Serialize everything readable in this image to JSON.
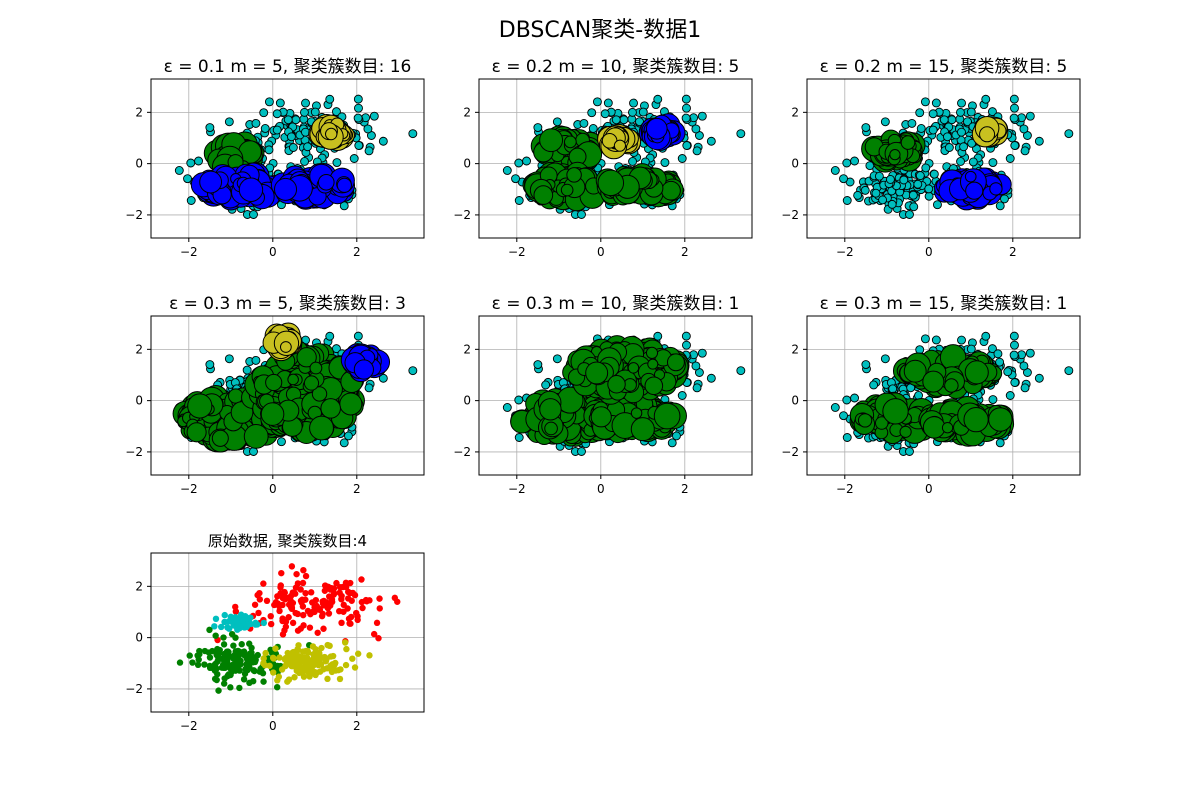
{
  "figure": {
    "suptitle": "DBSCAN聚类-数据1"
  },
  "chart_data": [
    {
      "type": "scatter",
      "title": "ε = 0.1  m = 5, 聚类簇数目: 16",
      "xlim": [
        -2.9,
        3.6
      ],
      "ylim": [
        -2.9,
        3.3
      ],
      "xticks": [
        -2,
        0,
        2
      ],
      "yticks": [
        -2,
        0,
        2
      ],
      "grid": true,
      "clusters": [
        {
          "color": "#008000",
          "regions": [
            {
              "cx": -0.9,
              "cy": 0.3,
              "rx": 0.5,
              "ry": 0.5
            }
          ]
        },
        {
          "color": "#c8c020",
          "regions": [
            {
              "cx": 1.45,
              "cy": 1.25,
              "rx": 0.35,
              "ry": 0.3
            }
          ]
        },
        {
          "color": "#0000ff",
          "regions": [
            {
              "cx": -0.8,
              "cy": -0.9,
              "rx": 0.9,
              "ry": 0.5
            },
            {
              "cx": 1.0,
              "cy": -0.9,
              "rx": 0.8,
              "ry": 0.45
            }
          ]
        }
      ],
      "noise_color": "#00bfbf"
    },
    {
      "type": "scatter",
      "title": "ε = 0.2  m = 10, 聚类簇数目: 5",
      "xlim": [
        -2.9,
        3.6
      ],
      "ylim": [
        -2.9,
        3.3
      ],
      "xticks": [
        -2,
        0,
        2
      ],
      "yticks": [
        -2,
        0,
        2
      ],
      "grid": true,
      "clusters": [
        {
          "color": "#008000",
          "regions": [
            {
              "cx": -0.8,
              "cy": 0.5,
              "rx": 0.6,
              "ry": 0.55
            },
            {
              "cx": -0.8,
              "cy": -0.9,
              "rx": 0.8,
              "ry": 0.55
            },
            {
              "cx": 0.9,
              "cy": -0.9,
              "rx": 0.85,
              "ry": 0.5
            }
          ]
        },
        {
          "color": "#c8c020",
          "regions": [
            {
              "cx": 0.4,
              "cy": 0.9,
              "rx": 0.3,
              "ry": 0.25
            }
          ]
        },
        {
          "color": "#0000ff",
          "regions": [
            {
              "cx": 1.45,
              "cy": 1.25,
              "rx": 0.3,
              "ry": 0.3
            }
          ]
        }
      ],
      "noise_color": "#00bfbf"
    },
    {
      "type": "scatter",
      "title": "ε = 0.2  m = 15, 聚类簇数目: 5",
      "xlim": [
        -2.9,
        3.6
      ],
      "ylim": [
        -2.9,
        3.3
      ],
      "xticks": [
        -2,
        0,
        2
      ],
      "yticks": [
        -2,
        0,
        2
      ],
      "grid": true,
      "clusters": [
        {
          "color": "#008000",
          "regions": [
            {
              "cx": -0.8,
              "cy": 0.5,
              "rx": 0.55,
              "ry": 0.45
            }
          ]
        },
        {
          "color": "#c8c020",
          "regions": [
            {
              "cx": 1.5,
              "cy": 1.25,
              "rx": 0.2,
              "ry": 0.18
            }
          ]
        },
        {
          "color": "#0000ff",
          "regions": [
            {
              "cx": 1.0,
              "cy": -0.9,
              "rx": 0.75,
              "ry": 0.45
            }
          ]
        }
      ],
      "noise_color": "#00bfbf"
    },
    {
      "type": "scatter",
      "title": "ε = 0.3  m = 5, 聚类簇数目: 3",
      "xlim": [
        -2.9,
        3.6
      ],
      "ylim": [
        -2.9,
        3.3
      ],
      "xticks": [
        -2,
        0,
        2
      ],
      "yticks": [
        -2,
        0,
        2
      ],
      "grid": true,
      "clusters": [
        {
          "color": "#008000",
          "regions": [
            {
              "cx": -0.9,
              "cy": -0.7,
              "rx": 1.3,
              "ry": 0.9
            },
            {
              "cx": 0.8,
              "cy": 0.3,
              "rx": 1.2,
              "ry": 1.6
            }
          ]
        },
        {
          "color": "#c8c020",
          "regions": [
            {
              "cx": 0.25,
              "cy": 2.35,
              "rx": 0.3,
              "ry": 0.3
            }
          ]
        },
        {
          "color": "#0000ff",
          "regions": [
            {
              "cx": 2.2,
              "cy": 1.5,
              "rx": 0.3,
              "ry": 0.35
            }
          ]
        }
      ],
      "noise_color": "#00bfbf"
    },
    {
      "type": "scatter",
      "title": "ε = 0.3  m = 10, 聚类簇数目: 1",
      "xlim": [
        -2.9,
        3.6
      ],
      "ylim": [
        -2.9,
        3.3
      ],
      "xticks": [
        -2,
        0,
        2
      ],
      "yticks": [
        -2,
        0,
        2
      ],
      "grid": true,
      "clusters": [
        {
          "color": "#008000",
          "regions": [
            {
              "cx": -0.8,
              "cy": -0.7,
              "rx": 1.1,
              "ry": 0.8
            },
            {
              "cx": 0.8,
              "cy": -0.7,
              "rx": 1.0,
              "ry": 0.6
            },
            {
              "cx": 0.6,
              "cy": 1.2,
              "rx": 1.3,
              "ry": 0.9
            }
          ]
        }
      ],
      "noise_color": "#00bfbf"
    },
    {
      "type": "scatter",
      "title": "ε = 0.3  m = 15, 聚类簇数目: 1",
      "xlim": [
        -2.9,
        3.6
      ],
      "ylim": [
        -2.9,
        3.3
      ],
      "xticks": [
        -2,
        0,
        2
      ],
      "yticks": [
        -2,
        0,
        2
      ],
      "grid": true,
      "clusters": [
        {
          "color": "#008000",
          "regions": [
            {
              "cx": -0.8,
              "cy": -0.7,
              "rx": 0.9,
              "ry": 0.6
            },
            {
              "cx": 0.9,
              "cy": -0.8,
              "rx": 0.9,
              "ry": 0.5
            },
            {
              "cx": 0.5,
              "cy": 1.1,
              "rx": 1.1,
              "ry": 0.6
            }
          ]
        }
      ],
      "noise_color": "#00bfbf"
    },
    {
      "type": "scatter",
      "title": "原始数据, 聚类簇数目:4",
      "xlim": [
        -2.9,
        3.6
      ],
      "ylim": [
        -2.9,
        3.3
      ],
      "xticks": [
        -2,
        0,
        2
      ],
      "yticks": [
        -2,
        0,
        2
      ],
      "grid": true,
      "groups": [
        {
          "color": "#ff0000",
          "cx": 1.0,
          "cy": 1.3,
          "sx": 0.85,
          "sy": 0.55
        },
        {
          "color": "#00bfbf",
          "cx": -0.8,
          "cy": 0.6,
          "sx": 0.25,
          "sy": 0.12
        },
        {
          "color": "#008000",
          "cx": -0.8,
          "cy": -0.9,
          "sx": 0.55,
          "sy": 0.45
        },
        {
          "color": "#c0c000",
          "cx": 0.8,
          "cy": -0.9,
          "sx": 0.45,
          "sy": 0.3
        }
      ]
    }
  ]
}
